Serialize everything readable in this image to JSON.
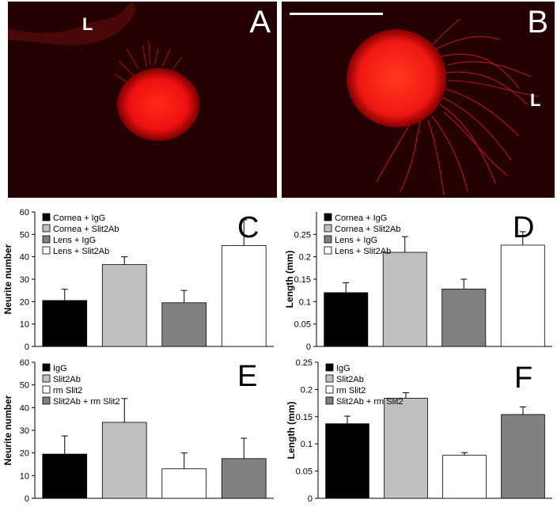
{
  "photos": [
    {
      "label": "A",
      "side_label": "L"
    },
    {
      "label": "B",
      "side_label": "L"
    }
  ],
  "panel_colors": {
    "background": "#250000",
    "tissue": "#ff1010",
    "scale_bar": "#ffffff"
  },
  "chart_data": [
    {
      "panel": "C",
      "type": "bar",
      "categories": [
        "Cornea + IgG",
        "Cornea + Slit2Ab",
        "Lens + IgG",
        "Lens + Slit2Ab"
      ],
      "values": [
        20.5,
        36.5,
        19.5,
        45
      ],
      "errors": [
        5,
        3.5,
        5.5,
        11.5
      ],
      "colors": [
        "#000000",
        "#c0c0c0",
        "#808080",
        "#ffffff"
      ],
      "legend": [
        "Cornea + IgG",
        "Cornea + Slit2Ab",
        "Lens + IgG",
        "Lens + Slit2Ab"
      ],
      "ylabel": "Neurite number",
      "ylim": [
        0,
        60
      ],
      "yticks": [
        "0",
        "10",
        "20",
        "30",
        "40",
        "50",
        "60"
      ],
      "legend_position": "top-left",
      "grid": false
    },
    {
      "panel": "D",
      "type": "bar",
      "categories": [
        "Cornea + IgG",
        "Cornea + Slit2Ab",
        "Lens + IgG",
        "Lens + Slit2Ab"
      ],
      "values": [
        0.12,
        0.21,
        0.128,
        0.226
      ],
      "errors": [
        0.022,
        0.035,
        0.022,
        0.03
      ],
      "colors": [
        "#000000",
        "#c0c0c0",
        "#808080",
        "#ffffff"
      ],
      "legend": [
        "Cornea + IgG",
        "Cornea + Slit2Ab",
        "Lens + IgG",
        "Lens + Slit2Ab"
      ],
      "ylabel": "Length (mm)",
      "ylim": [
        0,
        0.3
      ],
      "yticks": [
        "0",
        "0.05",
        "0.1",
        "0.15",
        "0.2",
        "0.25"
      ],
      "legend_position": "top-left",
      "grid": false
    },
    {
      "panel": "E",
      "type": "bar",
      "categories": [
        "IgG",
        "Slit2Ab",
        "rm Slit2",
        "Slit2Ab + rm Slit2"
      ],
      "values": [
        19.5,
        33.5,
        13,
        17.5
      ],
      "errors": [
        8,
        10.5,
        7,
        9
      ],
      "colors": [
        "#000000",
        "#c0c0c0",
        "#ffffff",
        "#808080"
      ],
      "legend": [
        "IgG",
        "Slit2Ab",
        "rm Slit2",
        "Slit2Ab + rm Slit2"
      ],
      "ylabel": "Neurite number",
      "ylim": [
        0,
        60
      ],
      "yticks": [
        "0",
        "10",
        "20",
        "30",
        "40",
        "50",
        "60"
      ],
      "legend_position": "top-left",
      "grid": false
    },
    {
      "panel": "F",
      "type": "bar",
      "categories": [
        "IgG",
        "Slit2Ab",
        "rm Slit2",
        "Slit2Ab + rm Slit2"
      ],
      "values": [
        0.137,
        0.184,
        0.079,
        0.154
      ],
      "errors": [
        0.014,
        0.01,
        0.005,
        0.014
      ],
      "colors": [
        "#000000",
        "#c0c0c0",
        "#ffffff",
        "#808080"
      ],
      "legend": [
        "IgG",
        "Slit2Ab",
        "rm Slit2",
        "Slit2Ab + rm Slit2"
      ],
      "ylabel": "Length (mm)",
      "ylim": [
        0,
        0.25
      ],
      "yticks": [
        "0",
        "0.05",
        "0.1",
        "0.15",
        "0.2",
        "0.25"
      ],
      "legend_position": "top-left",
      "grid": false
    }
  ]
}
